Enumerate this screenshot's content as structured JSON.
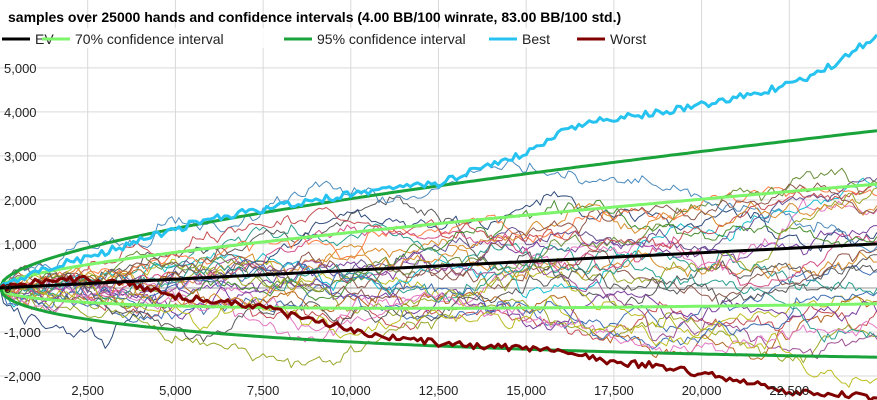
{
  "chart_data": {
    "type": "line",
    "title": "samples over 25000 hands and confidence intervals (4.00 BB/100 winrate, 83.00 BB/100 std.)",
    "winrate_bb_per_100": 4.0,
    "std_bb_per_100": 83.0,
    "hands": 25000,
    "xlim": [
      0,
      25000
    ],
    "ylim": [
      -2500,
      6200
    ],
    "x_ticks": [
      2500,
      5000,
      7500,
      10000,
      12500,
      15000,
      17500,
      20000,
      22500
    ],
    "x_tick_labels": [
      "2,500",
      "5,000",
      "7,500",
      "10,000",
      "12,500",
      "15,000",
      "17,500",
      "20,000",
      "22,500"
    ],
    "y_ticks": [
      -2000,
      -1000,
      0,
      1000,
      2000,
      3000,
      4000,
      5000
    ],
    "y_tick_labels": [
      "-2,000",
      "-1,000",
      "0",
      "1,000",
      "2,000",
      "3,000",
      "4,000",
      "5,000"
    ],
    "grid": true,
    "legend_position": "top",
    "legend": [
      {
        "key": "ev",
        "label": "EV",
        "color": "#000000"
      },
      {
        "key": "ci70",
        "label": "70% confidence interval",
        "color": "#7cf56a"
      },
      {
        "key": "ci95",
        "label": "95% confidence interval",
        "color": "#19a33a"
      },
      {
        "key": "best",
        "label": "Best",
        "color": "#27c3f0"
      },
      {
        "key": "worst",
        "label": "Worst",
        "color": "#800000"
      }
    ],
    "best": {
      "x": [
        0,
        1250,
        2500,
        3750,
        5000,
        6250,
        7500,
        8750,
        10000,
        11250,
        12500,
        13750,
        15000,
        16250,
        17500,
        18750,
        20000,
        21250,
        22500,
        23750,
        25000
      ],
      "y": [
        0,
        450,
        700,
        1000,
        1350,
        1600,
        1800,
        1950,
        2150,
        2300,
        2350,
        2800,
        3050,
        3650,
        3850,
        4000,
        4150,
        4400,
        4600,
        5050,
        5750
      ]
    },
    "worst": {
      "x": [
        0,
        1250,
        2500,
        3750,
        5000,
        6250,
        7500,
        8750,
        10000,
        11250,
        12500,
        13750,
        15000,
        16250,
        17500,
        18750,
        20000,
        21250,
        22500,
        23750,
        25000
      ],
      "y": [
        0,
        150,
        200,
        100,
        -200,
        -300,
        -450,
        -700,
        -950,
        -1150,
        -1250,
        -1350,
        -1350,
        -1450,
        -1700,
        -1750,
        -1950,
        -2100,
        -2350,
        -2400,
        -2500
      ]
    },
    "sample_count": 30,
    "sample_colors": [
      "#7b3fa0",
      "#c44e52",
      "#3f6fb5",
      "#9aa82c",
      "#d98c2c",
      "#2a9d8f",
      "#8c564b",
      "#e377c2",
      "#5a5a5a",
      "#bcbd22",
      "#17becf",
      "#a05195",
      "#2f4b7c",
      "#ff7c43",
      "#665191",
      "#6a8f3a",
      "#d45087",
      "#488f31",
      "#b5651d",
      "#4b8bbe"
    ]
  }
}
